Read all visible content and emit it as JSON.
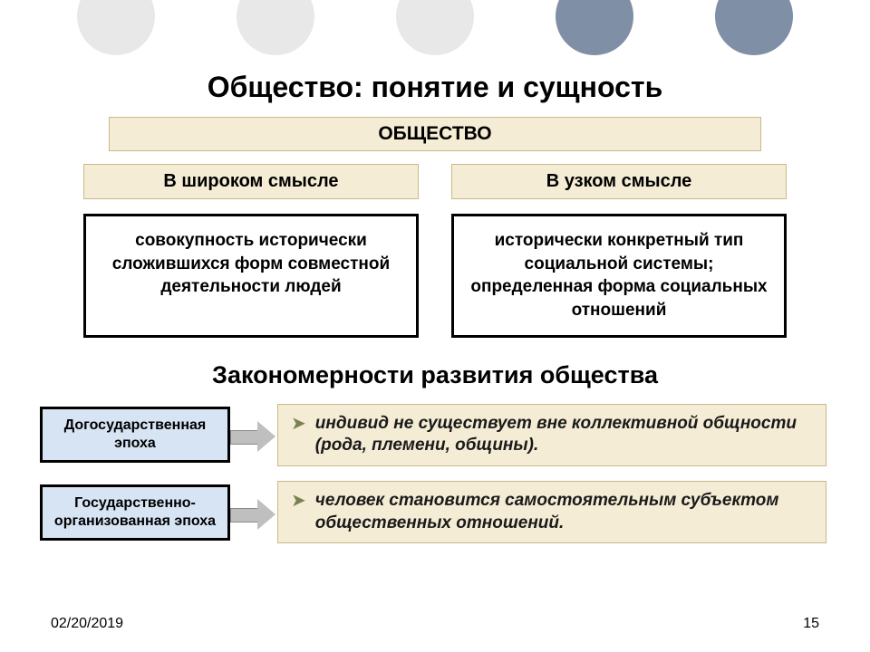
{
  "decor": {
    "circle_colors": [
      "#e8e8e8",
      "#e8e8e8",
      "#e8e8e8",
      "#7f8fa6",
      "#7f8fa6"
    ]
  },
  "title": "Общество: понятие и сущность",
  "society_label": "ОБЩЕСТВО",
  "banner": {
    "bg": "#f4ecd4",
    "border": "#c9b98a"
  },
  "columns": {
    "left_header": "В широком смысле",
    "right_header": "В узком смысле",
    "left_def": "совокупность исторически сложившихся форм совместной деятельности людей",
    "right_def": "исторически конкретный тип социальной системы; определенная форма социальных отношений"
  },
  "subtitle": "Закономерности развития общества",
  "rows": [
    {
      "epoch": "Догосударственная эпоха",
      "bullet": "индивид не существует вне коллективной общности (рода, племени, общины)."
    },
    {
      "epoch": "Государственно-организованная эпоха",
      "bullet": "человек становится самостоятельным субъектом общественных отношений."
    }
  ],
  "epoch_box_bg": "#d6e4f3",
  "footer": {
    "date": "02/20/2019",
    "page": "15"
  }
}
